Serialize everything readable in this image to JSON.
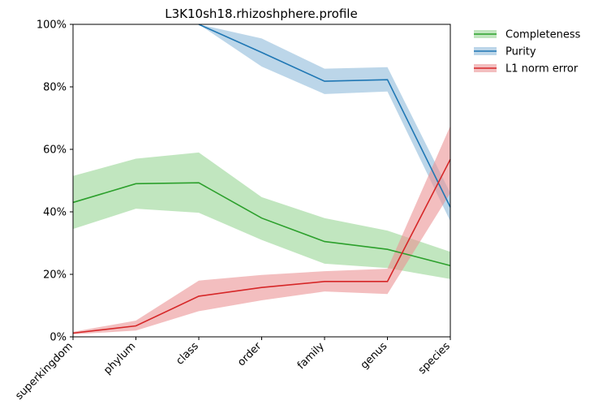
{
  "chart_data": {
    "type": "line",
    "title": "L3K10sh18.rhizoshphere.profile",
    "xlabel": "",
    "ylabel": "",
    "categories": [
      "superkingdom",
      "phylum",
      "class",
      "order",
      "family",
      "genus",
      "species"
    ],
    "ylim": [
      0,
      100
    ],
    "yticks": [
      "0%",
      "20%",
      "40%",
      "60%",
      "80%",
      "100%"
    ],
    "grid": false,
    "legend_position": "outside-top-right",
    "series": [
      {
        "name": "Completeness",
        "color": "#2ca02c",
        "fill_color": "#98d594",
        "values": [
          43.0,
          49.0,
          49.3,
          38.0,
          30.5,
          28.0,
          22.8
        ],
        "lower": [
          34.5,
          41.0,
          39.7,
          31.0,
          23.4,
          22.0,
          18.5
        ],
        "upper": [
          51.5,
          57.0,
          59.0,
          44.7,
          38.0,
          34.0,
          27.2
        ]
      },
      {
        "name": "Purity",
        "color": "#1f77b4",
        "fill_color": "#8fbbda",
        "values": [
          null,
          null,
          100.0,
          91.0,
          81.8,
          82.3,
          41.5
        ],
        "lower": [
          null,
          null,
          100.0,
          86.5,
          77.7,
          78.5,
          37.0
        ],
        "upper": [
          null,
          null,
          100.0,
          95.5,
          85.8,
          86.3,
          46.0
        ]
      },
      {
        "name": "L1 norm error",
        "color": "#d62728",
        "fill_color": "#eb9394",
        "values": [
          1.2,
          3.5,
          13.0,
          15.8,
          17.7,
          17.7,
          56.8
        ],
        "lower": [
          0.8,
          2.0,
          8.2,
          11.7,
          14.5,
          13.7,
          46.0
        ],
        "upper": [
          1.6,
          5.2,
          18.0,
          19.8,
          21.0,
          21.8,
          67.5
        ]
      }
    ]
  }
}
